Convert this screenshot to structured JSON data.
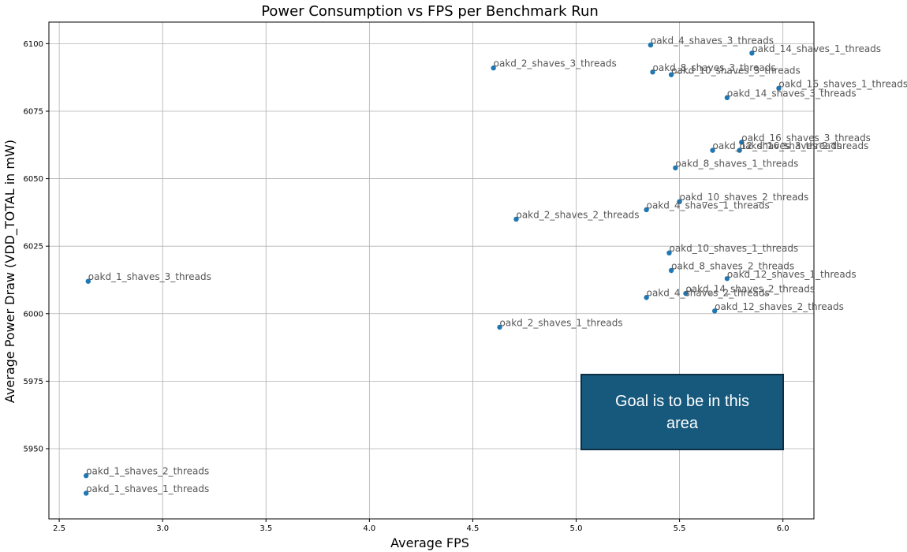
{
  "chart_data": {
    "type": "scatter",
    "title": "Power Consumption vs FPS per Benchmark Run",
    "xlabel": "Average FPS",
    "ylabel": "Average Power Draw (VDD_TOTAL in mW)",
    "xlim": [
      2.45,
      6.15
    ],
    "ylim": [
      5924,
      6108
    ],
    "xticks": [
      2.5,
      3.0,
      3.5,
      4.0,
      4.5,
      5.0,
      5.5,
      6.0
    ],
    "xtick_labels": [
      "2.5",
      "3.0",
      "3.5",
      "4.0",
      "4.5",
      "5.0",
      "5.5",
      "6.0"
    ],
    "yticks": [
      5950,
      5975,
      6000,
      6025,
      6050,
      6075,
      6100
    ],
    "ytick_labels": [
      "5950",
      "5975",
      "6000",
      "6025",
      "6050",
      "6075",
      "6100"
    ],
    "grid": true,
    "point_color": "#1f77b4",
    "points": [
      {
        "label": "oakd_4_shaves_3_threads",
        "x": 5.36,
        "y": 6099.5
      },
      {
        "label": "oakd_14_shaves_1_threads",
        "x": 5.85,
        "y": 6096.5
      },
      {
        "label": "oakd_2_shaves_3_threads",
        "x": 4.6,
        "y": 6091.0
      },
      {
        "label": "oakd_8_shaves_3_threads",
        "x": 5.37,
        "y": 6089.5
      },
      {
        "label": "oakd_10_shaves_3_threads",
        "x": 5.46,
        "y": 6088.5
      },
      {
        "label": "oakd_16_shaves_1_threads",
        "x": 5.98,
        "y": 6083.5
      },
      {
        "label": "oakd_14_shaves_3_threads",
        "x": 5.73,
        "y": 6080.0
      },
      {
        "label": "oakd_16_shaves_3_threads",
        "x": 5.8,
        "y": 6063.5
      },
      {
        "label": "oakd_12_shaves_3_threads",
        "x": 5.66,
        "y": 6060.5
      },
      {
        "label": "oakd_16_shaves_2_threads",
        "x": 5.79,
        "y": 6060.5
      },
      {
        "label": "oakd_8_shaves_1_threads",
        "x": 5.48,
        "y": 6054.0
      },
      {
        "label": "oakd_10_shaves_2_threads",
        "x": 5.5,
        "y": 6041.5
      },
      {
        "label": "oakd_4_shaves_1_threads",
        "x": 5.34,
        "y": 6038.5
      },
      {
        "label": "oakd_2_shaves_2_threads",
        "x": 4.71,
        "y": 6035.0
      },
      {
        "label": "oakd_10_shaves_1_threads",
        "x": 5.45,
        "y": 6022.5
      },
      {
        "label": "oakd_8_shaves_2_threads",
        "x": 5.46,
        "y": 6016.0
      },
      {
        "label": "oakd_12_shaves_1_threads",
        "x": 5.73,
        "y": 6013.0
      },
      {
        "label": "oakd_1_shaves_3_threads",
        "x": 2.64,
        "y": 6012.0
      },
      {
        "label": "oakd_14_shaves_2_threads",
        "x": 5.53,
        "y": 6007.5
      },
      {
        "label": "oakd_4_shaves_2_threads",
        "x": 5.34,
        "y": 6006.0
      },
      {
        "label": "oakd_12_shaves_2_threads",
        "x": 5.67,
        "y": 6001.0
      },
      {
        "label": "oakd_2_shaves_1_threads",
        "x": 4.63,
        "y": 5995.0
      },
      {
        "label": "oakd_1_shaves_2_threads",
        "x": 2.63,
        "y": 5940.0
      },
      {
        "label": "oakd_1_shaves_1_threads",
        "x": 2.63,
        "y": 5933.5
      }
    ],
    "annotation": "Goal is to be in this area"
  }
}
